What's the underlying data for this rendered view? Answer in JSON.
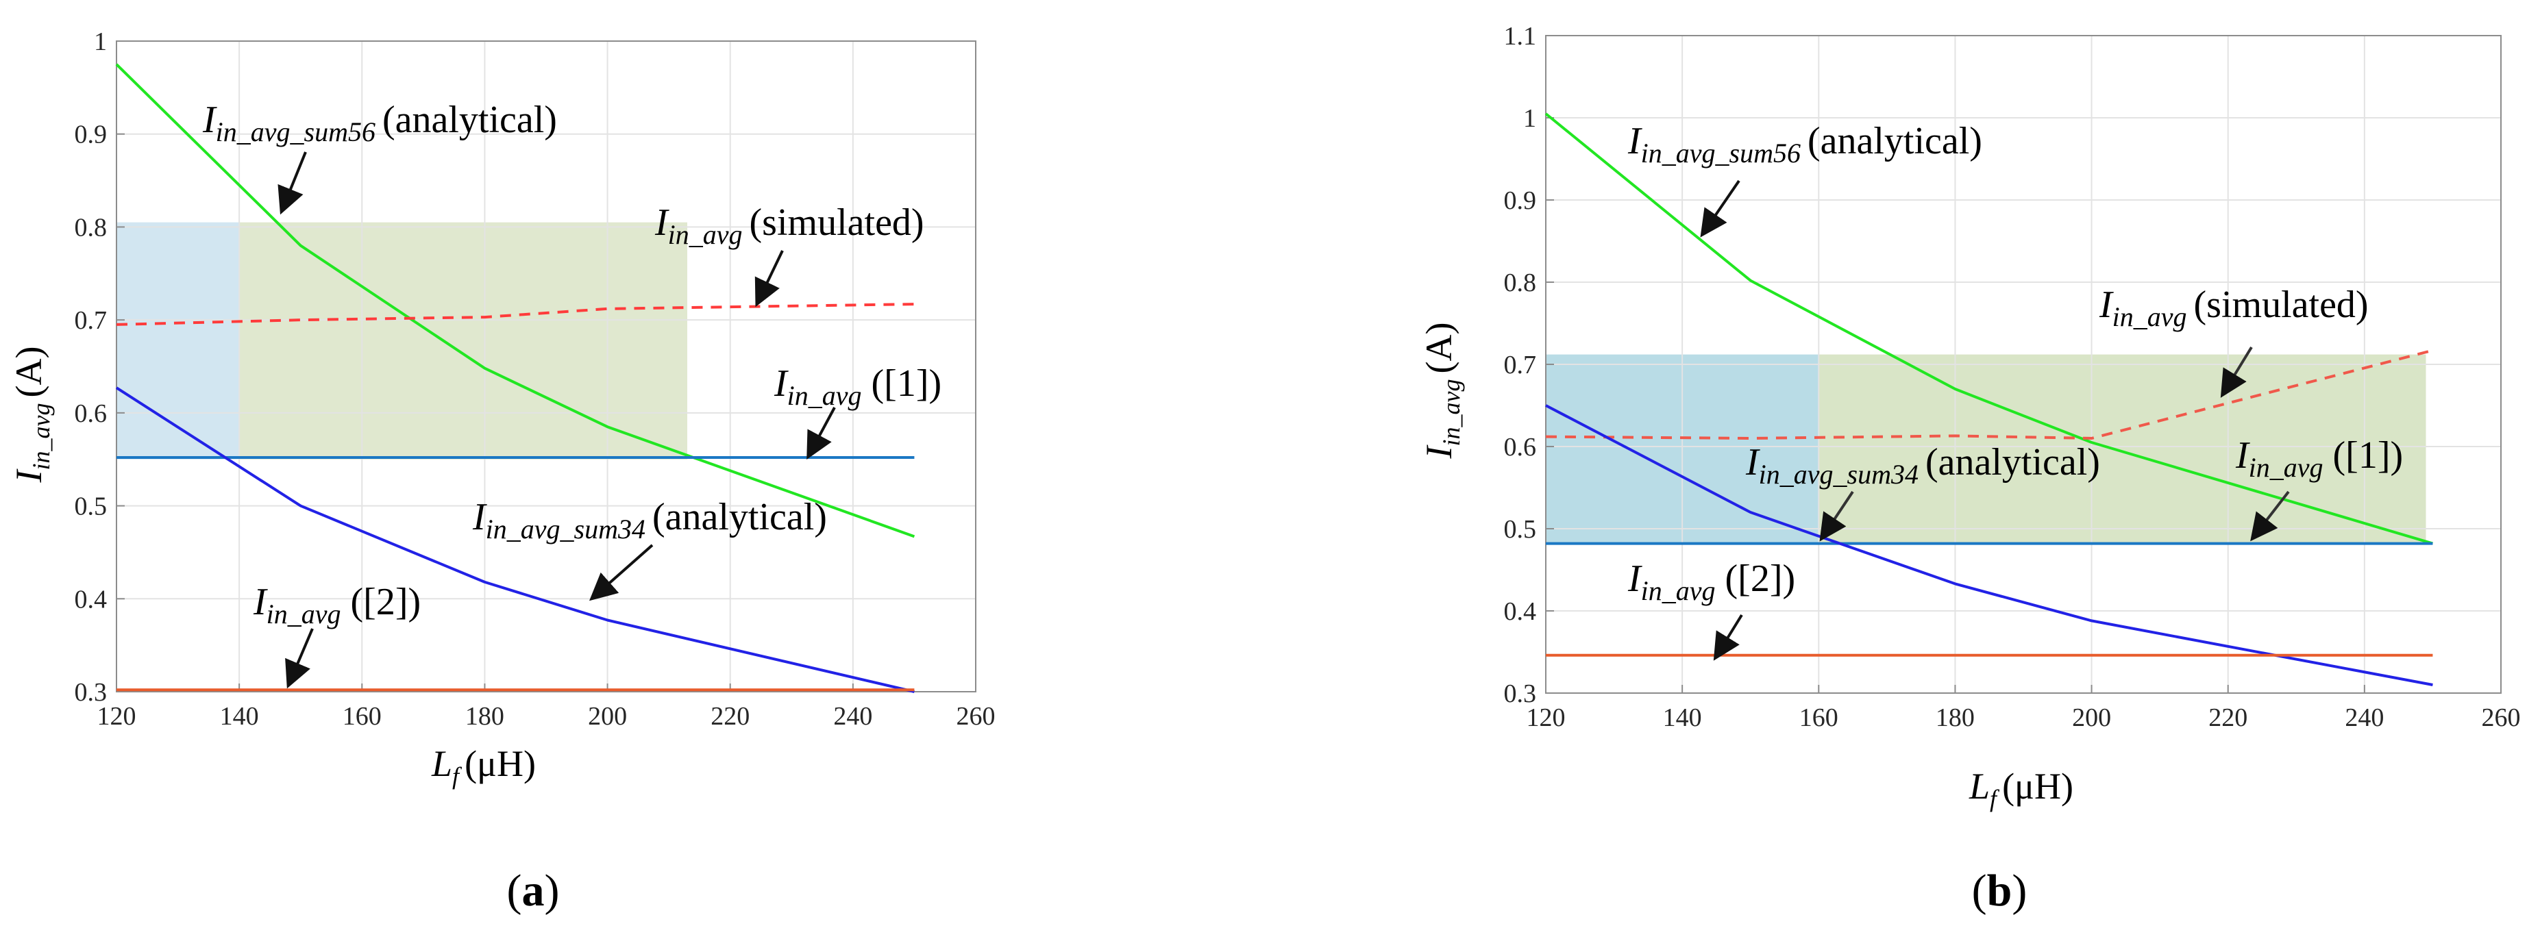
{
  "chart_data": [
    {
      "panel": "a",
      "type": "line",
      "xlabel": "(μH)",
      "xlabel_var": "L",
      "xlabel_sub": "f",
      "ylabel": "(A)",
      "ylabel_var": "I",
      "ylabel_sub": "in_avg",
      "xlim": [
        120,
        260
      ],
      "ylim": [
        0.3,
        1.0
      ],
      "xticks": [
        120,
        140,
        160,
        180,
        200,
        220,
        240,
        260
      ],
      "yticks": [
        0.3,
        0.4,
        0.5,
        0.6,
        0.7,
        0.8,
        0.9,
        1.0
      ],
      "ytick_labels": [
        "0.3",
        "0.4",
        "0.5",
        "0.6",
        "0.7",
        "0.8",
        "0.9",
        "1"
      ],
      "grid": true,
      "shaded_regions": [
        {
          "x": [
            120,
            140
          ],
          "y": [
            0.55,
            0.805
          ],
          "color": "#d2e6f1"
        },
        {
          "x": [
            140,
            213
          ],
          "y": [
            0.55,
            0.805
          ],
          "color": "#e0e8cf"
        }
      ],
      "series": [
        {
          "name": "I_in_avg_sum56 (analytical)",
          "color": "#22e622",
          "style": "solid",
          "x": [
            120,
            150,
            180,
            200,
            250
          ],
          "y": [
            0.975,
            0.78,
            0.648,
            0.585,
            0.467
          ]
        },
        {
          "name": "I_in_avg (simulated)",
          "color": "#ff3b3b",
          "style": "dashed",
          "x": [
            120,
            150,
            180,
            200,
            250
          ],
          "y": [
            0.695,
            0.7,
            0.703,
            0.712,
            0.717
          ]
        },
        {
          "name": "I_in_avg ([1])",
          "color": "#1b78c4",
          "style": "solid",
          "x": [
            120,
            250
          ],
          "y": [
            0.552,
            0.552
          ]
        },
        {
          "name": "I_in_avg_sum34 (analytical)",
          "color": "#2222e6",
          "style": "solid",
          "x": [
            120,
            150,
            180,
            200,
            250
          ],
          "y": [
            0.627,
            0.5,
            0.418,
            0.377,
            0.3
          ]
        },
        {
          "name": "I_in_avg ([2])",
          "color": "#e85c2c",
          "style": "solid",
          "x": [
            120,
            250
          ],
          "y": [
            0.302,
            0.302
          ]
        }
      ],
      "annotations": [
        {
          "sym": "I",
          "sub": "in_avg_sum56",
          "text": "(analytical)"
        },
        {
          "sym": "I",
          "sub": "in_avg",
          "text": "(simulated)"
        },
        {
          "sym": "I",
          "sub": "in_avg",
          "text": "([1])"
        },
        {
          "sym": "I",
          "sub": "in_avg_sum34",
          "text": "(analytical)"
        },
        {
          "sym": "I",
          "sub": "in_avg",
          "text": "([2])"
        }
      ],
      "panel_label": {
        "open": "(",
        "letter": "a",
        "close": ")"
      }
    },
    {
      "panel": "b",
      "type": "line",
      "xlabel": "(μH)",
      "xlabel_var": "L",
      "xlabel_sub": "f",
      "ylabel": "(A)",
      "ylabel_var": "I",
      "ylabel_sub": "in_avg",
      "xlim": [
        120,
        260
      ],
      "ylim": [
        0.3,
        1.1
      ],
      "xticks": [
        120,
        140,
        160,
        180,
        200,
        220,
        240,
        260
      ],
      "yticks": [
        0.3,
        0.4,
        0.5,
        0.6,
        0.7,
        0.8,
        0.9,
        1.0,
        1.1
      ],
      "ytick_labels": [
        "0.3",
        "0.4",
        "0.5",
        "0.6",
        "0.7",
        "0.8",
        "0.9",
        "1",
        "1.1"
      ],
      "grid": true,
      "shaded_regions": [
        {
          "x": [
            120,
            160
          ],
          "y": [
            0.482,
            0.712
          ],
          "color": "#b9dce6"
        },
        {
          "x": [
            160,
            249
          ],
          "y": [
            0.482,
            0.712
          ],
          "color": "#d9e5c7"
        }
      ],
      "series": [
        {
          "name": "I_in_avg_sum56 (analytical)",
          "color": "#22e622",
          "style": "solid",
          "x": [
            120,
            150,
            180,
            200,
            250
          ],
          "y": [
            1.005,
            0.802,
            0.67,
            0.605,
            0.482
          ]
        },
        {
          "name": "I_in_avg (simulated)",
          "color": "#f0584a",
          "style": "dashed",
          "x": [
            120,
            150,
            180,
            200,
            250
          ],
          "y": [
            0.612,
            0.61,
            0.613,
            0.61,
            0.717
          ]
        },
        {
          "name": "I_in_avg ([1])",
          "color": "#1b78c4",
          "style": "solid",
          "x": [
            120,
            250
          ],
          "y": [
            0.482,
            0.482
          ]
        },
        {
          "name": "I_in_avg_sum34 (analytical)",
          "color": "#2222e6",
          "style": "solid",
          "x": [
            120,
            150,
            180,
            200,
            250
          ],
          "y": [
            0.65,
            0.52,
            0.433,
            0.388,
            0.31
          ]
        },
        {
          "name": "I_in_avg ([2])",
          "color": "#e85c2c",
          "style": "solid",
          "x": [
            120,
            250
          ],
          "y": [
            0.346,
            0.346
          ]
        }
      ],
      "annotations": [
        {
          "sym": "I",
          "sub": "in_avg_sum56",
          "text": "(analytical)"
        },
        {
          "sym": "I",
          "sub": "in_avg",
          "text": "(simulated)"
        },
        {
          "sym": "I",
          "sub": "in_avg",
          "text": "([1])"
        },
        {
          "sym": "I",
          "sub": "in_avg_sum34",
          "text": "(analytical)"
        },
        {
          "sym": "I",
          "sub": "in_avg",
          "text": "([2])"
        }
      ],
      "panel_label": {
        "open": "(",
        "letter": "b",
        "close": ")"
      }
    }
  ]
}
